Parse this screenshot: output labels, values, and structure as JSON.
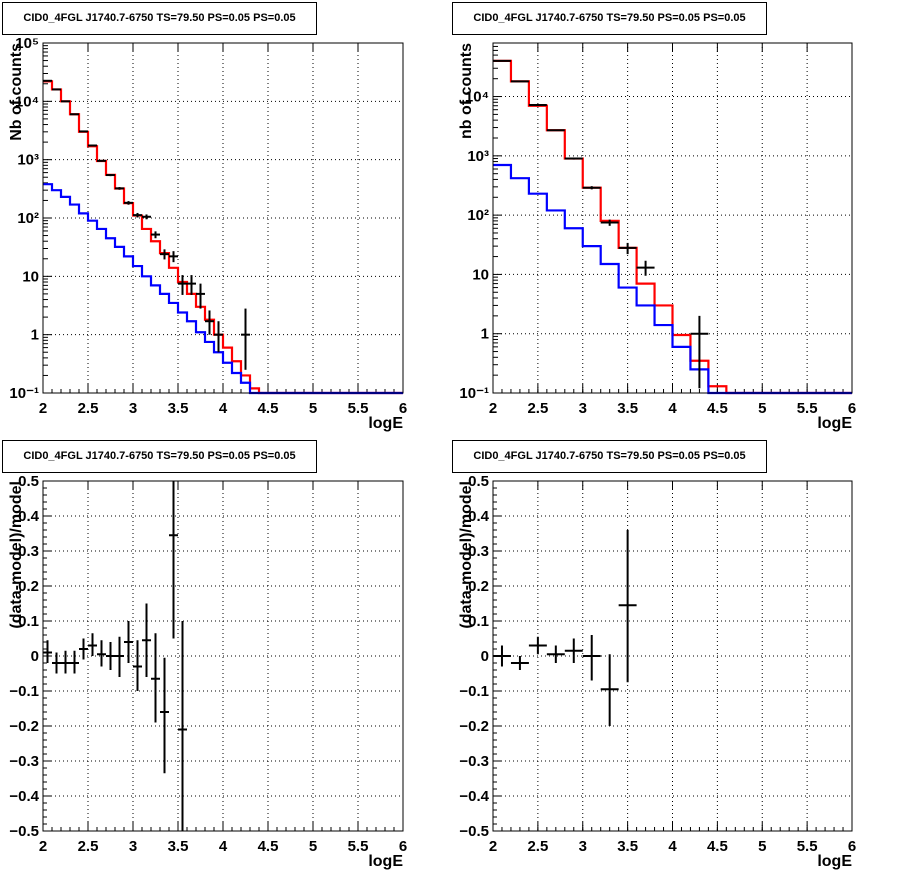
{
  "chart_data": [
    {
      "type": "line",
      "title": "CID0_4FGL J1740.7-6750 TS=79.50 PS=0.05 PS=0.05",
      "xlabel": "logE",
      "ylabel": "Nb of counts",
      "xlim": [
        2,
        6
      ],
      "ylim": [
        0.1,
        100000
      ],
      "yscale": "log",
      "grid": true,
      "xticks": [
        "2",
        "2.5",
        "3",
        "3.5",
        "4",
        "4.5",
        "5",
        "5.5",
        "6"
      ],
      "yticks": [
        "10⁻¹",
        "1",
        "10",
        "10²",
        "10³",
        "10⁴",
        "10⁵"
      ],
      "series": [
        {
          "color": "#ff0000",
          "style": "step",
          "edges": [
            2.0,
            2.1,
            2.2,
            2.3,
            2.4,
            2.5,
            2.6,
            2.7,
            2.8,
            2.9,
            3.0,
            3.1,
            3.2,
            3.3,
            3.4,
            3.5,
            3.6,
            3.7,
            3.8,
            3.9,
            4.0,
            4.1,
            4.2,
            4.3,
            4.4,
            4.5,
            4.6,
            4.7,
            4.8,
            4.9,
            5.0,
            5.1,
            5.2,
            5.3,
            5.4,
            5.5,
            5.6,
            5.7,
            5.8,
            5.9,
            6.0
          ],
          "values": [
            22000,
            16000,
            10000,
            6000,
            3000,
            1700,
            950,
            550,
            320,
            180,
            110,
            65,
            40,
            25,
            14,
            8,
            5,
            3,
            1.8,
            1.0,
            0.6,
            0.35,
            0.2,
            0.12,
            0.1,
            0.1,
            0.1,
            0.1,
            0.1,
            0.1,
            0.1,
            0.1,
            0.1,
            0.1,
            0.1,
            0.1,
            0.1,
            0.1,
            0.1,
            0.1
          ]
        },
        {
          "color": "#0000ff",
          "style": "step",
          "edges": [
            2.0,
            2.1,
            2.2,
            2.3,
            2.4,
            2.5,
            2.6,
            2.7,
            2.8,
            2.9,
            3.0,
            3.1,
            3.2,
            3.3,
            3.4,
            3.5,
            3.6,
            3.7,
            3.8,
            3.9,
            4.0,
            4.1,
            4.2,
            4.3,
            4.4,
            4.5,
            4.6,
            4.7,
            4.8,
            4.9,
            5.0,
            5.1,
            5.2,
            5.3,
            5.4,
            5.5,
            5.6,
            5.7,
            5.8,
            5.9,
            6.0
          ],
          "values": [
            380,
            300,
            230,
            170,
            120,
            90,
            65,
            45,
            32,
            22,
            15,
            10,
            7,
            5,
            3.5,
            2.4,
            1.7,
            1.1,
            0.75,
            0.5,
            0.33,
            0.22,
            0.15,
            0.1,
            0.1,
            0.1,
            0.1,
            0.1,
            0.1,
            0.1,
            0.1,
            0.1,
            0.1,
            0.1,
            0.1,
            0.1,
            0.1,
            0.1,
            0.1,
            0.1
          ]
        }
      ],
      "points": {
        "color": "#000000",
        "x": [
          2.05,
          2.15,
          2.25,
          2.35,
          2.45,
          2.55,
          2.65,
          2.75,
          2.85,
          2.95,
          3.05,
          3.15,
          3.25,
          3.35,
          3.45,
          3.55,
          3.65,
          3.75,
          3.85,
          3.95,
          4.25
        ],
        "xerr": 0.05,
        "y": [
          22500,
          16000,
          10000,
          6000,
          3050,
          1750,
          955,
          545,
          322,
          182,
          112,
          105,
          52,
          24,
          22,
          7.5,
          7.5,
          5.0,
          1.7,
          1.0,
          1.0
        ],
        "ylo": [
          22350,
          15870,
          9900,
          5920,
          2995,
          1710,
          925,
          522,
          305,
          169,
          102,
          95,
          45,
          19.5,
          17.5,
          4.8,
          4.8,
          2.8,
          1.0,
          0.5,
          0.25
        ],
        "yhi": [
          22650,
          16130,
          10100,
          6080,
          3105,
          1790,
          985,
          568,
          339,
          195,
          122,
          115,
          59,
          29,
          27,
          10.5,
          10.5,
          7.5,
          2.6,
          1.7,
          2.8
        ]
      }
    },
    {
      "type": "line",
      "title": "CID0_4FGL J1740.7-6750 TS=79.50 PS=0.05 PS=0.05",
      "xlabel": "logE",
      "ylabel": "nb of counts",
      "xlim": [
        2,
        6
      ],
      "ylim": [
        0.1,
        80000
      ],
      "yscale": "log",
      "grid": true,
      "xticks": [
        "2",
        "2.5",
        "3",
        "3.5",
        "4",
        "4.5",
        "5",
        "5.5",
        "6"
      ],
      "yticks": [
        "10⁻¹",
        "1",
        "10",
        "10²",
        "10³",
        "10⁴"
      ],
      "series": [
        {
          "color": "#ff0000",
          "style": "step",
          "edges": [
            2.0,
            2.2,
            2.4,
            2.6,
            2.8,
            3.0,
            3.2,
            3.4,
            3.6,
            3.8,
            4.0,
            4.2,
            4.4,
            4.6,
            4.8,
            5.0,
            5.2,
            5.4,
            5.6,
            5.8,
            6.0
          ],
          "values": [
            40000,
            18000,
            7000,
            2700,
            900,
            290,
            80,
            28,
            7,
            3,
            0.95,
            0.35,
            0.13,
            0.1,
            0.1,
            0.1,
            0.1,
            0.1,
            0.1,
            0.1
          ]
        },
        {
          "color": "#0000ff",
          "style": "step",
          "edges": [
            2.0,
            2.2,
            2.4,
            2.6,
            2.8,
            3.0,
            3.2,
            3.4,
            3.6,
            3.8,
            4.0,
            4.2,
            4.4,
            4.6,
            4.8,
            5.0,
            5.2,
            5.4,
            5.6,
            5.8,
            6.0
          ],
          "values": [
            700,
            420,
            230,
            120,
            60,
            30,
            15,
            6,
            3,
            1.4,
            0.6,
            0.25,
            0.1,
            0.1,
            0.1,
            0.1,
            0.1,
            0.1,
            0.1,
            0.1
          ]
        }
      ],
      "points": {
        "color": "#000000",
        "x": [
          2.1,
          2.3,
          2.5,
          2.7,
          2.9,
          3.1,
          3.3,
          3.5,
          3.7,
          4.3
        ],
        "xerr": 0.1,
        "y": [
          40000,
          18000,
          7200,
          2700,
          900,
          290,
          75,
          28,
          13,
          1.0
        ],
        "ylo": [
          39700,
          17800,
          7050,
          2640,
          865,
          272,
          66,
          22,
          9.5,
          0.12
        ],
        "yhi": [
          40300,
          18200,
          7350,
          2760,
          935,
          308,
          84,
          34,
          17,
          2.0
        ]
      }
    },
    {
      "type": "scatter",
      "title": "CID0_4FGL J1740.7-6750 TS=79.50 PS=0.05 PS=0.05",
      "xlabel": "logE",
      "ylabel": "(data-model)/model",
      "xlim": [
        2,
        6
      ],
      "ylim": [
        -0.5,
        0.5
      ],
      "grid": true,
      "xticks": [
        "2",
        "2.5",
        "3",
        "3.5",
        "4",
        "4.5",
        "5",
        "5.5",
        "6"
      ],
      "yticks": [
        "−0.5",
        "−0.4",
        "−0.3",
        "−0.2",
        "−0.1",
        "0",
        "0.1",
        "0.2",
        "0.3",
        "0.4",
        "0.5"
      ],
      "points": {
        "color": "#000000",
        "x": [
          2.05,
          2.15,
          2.25,
          2.35,
          2.45,
          2.55,
          2.65,
          2.75,
          2.85,
          2.95,
          3.05,
          3.15,
          3.25,
          3.35,
          3.45,
          3.55
        ],
        "xerr": 0.05,
        "y": [
          0.01,
          -0.02,
          -0.02,
          -0.02,
          0.02,
          0.03,
          0.005,
          0.0,
          0.0,
          0.04,
          -0.03,
          0.045,
          -0.065,
          -0.16,
          0.345,
          -0.21
        ],
        "ylo": [
          -0.02,
          -0.05,
          -0.05,
          -0.05,
          -0.01,
          0.0,
          -0.03,
          -0.04,
          -0.06,
          -0.02,
          -0.1,
          -0.06,
          -0.19,
          -0.335,
          0.05,
          -0.5
        ],
        "yhi": [
          0.045,
          0.01,
          0.015,
          0.015,
          0.05,
          0.065,
          0.045,
          0.04,
          0.055,
          0.1,
          0.045,
          0.15,
          0.065,
          -0.005,
          0.5,
          0.1
        ]
      }
    },
    {
      "type": "scatter",
      "title": "CID0_4FGL J1740.7-6750 TS=79.50 PS=0.05 PS=0.05",
      "xlabel": "logE",
      "ylabel": "(data-model)/model",
      "xlim": [
        2,
        6
      ],
      "ylim": [
        -0.5,
        0.5
      ],
      "grid": true,
      "xticks": [
        "2",
        "2.5",
        "3",
        "3.5",
        "4",
        "4.5",
        "5",
        "5.5",
        "6"
      ],
      "yticks": [
        "−0.5",
        "−0.4",
        "−0.3",
        "−0.2",
        "−0.1",
        "0",
        "0.1",
        "0.2",
        "0.3",
        "0.4",
        "0.5"
      ],
      "points": {
        "color": "#000000",
        "x": [
          2.1,
          2.3,
          2.5,
          2.7,
          2.9,
          3.1,
          3.3,
          3.5
        ],
        "xerr": 0.1,
        "y": [
          0.0,
          -0.02,
          0.03,
          0.005,
          0.015,
          0.0,
          -0.095,
          0.145
        ],
        "ylo": [
          -0.03,
          -0.04,
          0.005,
          -0.02,
          -0.02,
          -0.07,
          -0.2,
          -0.075
        ],
        "yhi": [
          0.03,
          0.0,
          0.055,
          0.03,
          0.05,
          0.06,
          0.005,
          0.36
        ]
      }
    }
  ]
}
